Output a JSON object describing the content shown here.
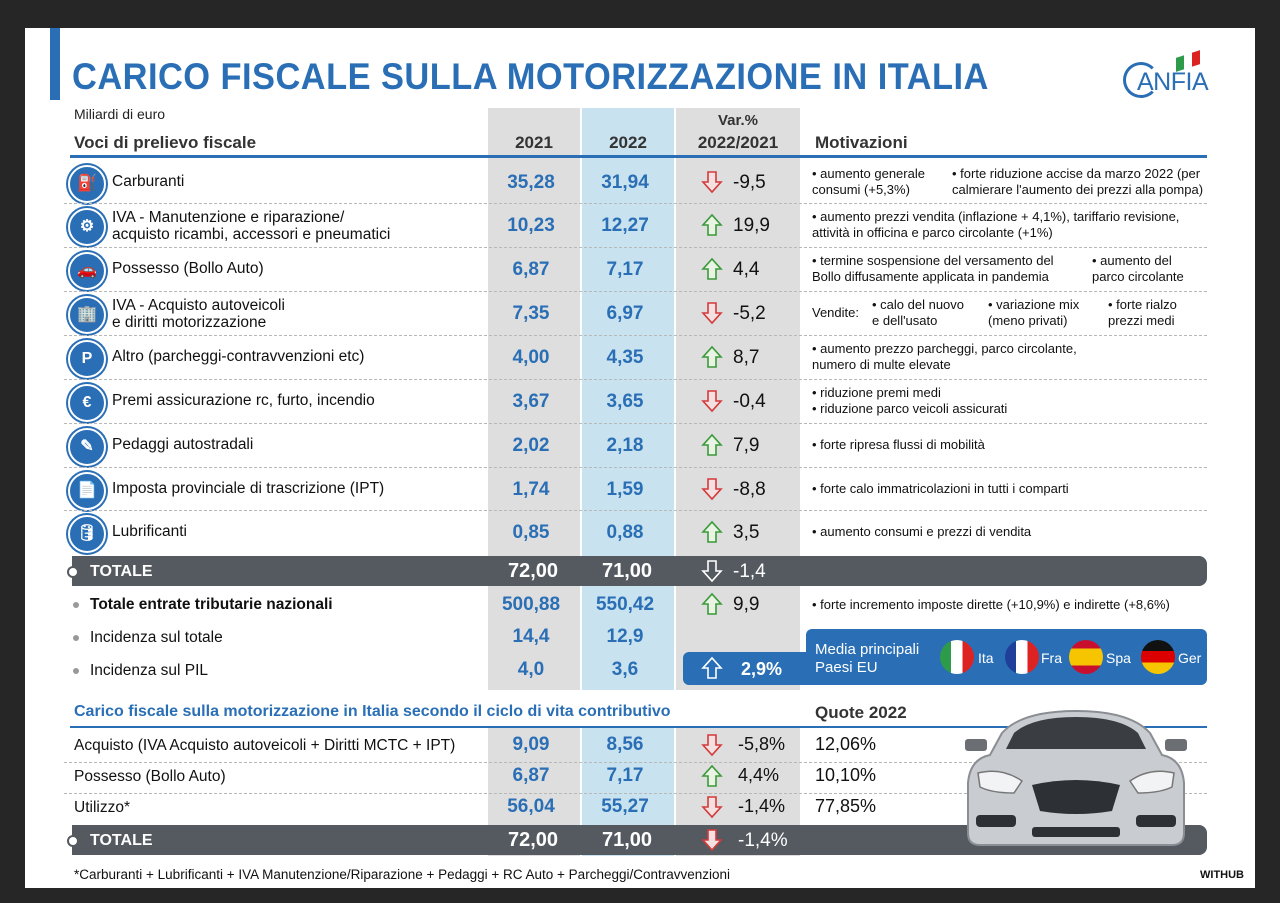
{
  "title": "CARICO FISCALE SULLA MOTORIZZAZIONE IN ITALIA",
  "logo": "ANFIA",
  "unit": "Miliardi di euro",
  "headers": {
    "voci": "Voci di prelievo fiscale",
    "y2021": "2021",
    "y2022": "2022",
    "var_top": "Var.%",
    "var_bottom": "2022/2021",
    "motivazioni": "Motivazioni"
  },
  "rows": [
    {
      "label1": "Carburanti",
      "label2": "",
      "v2021": "35,28",
      "v2022": "31,94",
      "dir": "down",
      "var": "-9,5",
      "mot": [
        [
          "• aumento generale",
          "consumi (+5,3%)"
        ],
        [
          "• forte riduzione accise da marzo 2022 (per",
          "calmierare l'aumento dei prezzi alla pompa)"
        ]
      ]
    },
    {
      "label1": "IVA - Manutenzione e riparazione/",
      "label2": "acquisto ricambi, accessori e pneumatici",
      "v2021": "10,23",
      "v2022": "12,27",
      "dir": "up",
      "var": "19,9",
      "mot": [
        [
          "• aumento prezzi vendita (inflazione + 4,1%), tariffario revisione,",
          "attività in officina e parco circolante (+1%)"
        ]
      ]
    },
    {
      "label1": "Possesso (Bollo Auto)",
      "label2": "",
      "v2021": "6,87",
      "v2022": "7,17",
      "dir": "up",
      "var": "4,4",
      "mot": [
        [
          "• termine sospensione del versamento del",
          "Bollo diffusamente applicata in pandemia"
        ],
        [
          "• aumento del",
          "parco circolante"
        ]
      ]
    },
    {
      "label1": "IVA - Acquisto autoveicoli",
      "label2": "e diritti motorizzazione",
      "v2021": "7,35",
      "v2022": "6,97",
      "dir": "down",
      "var": "-5,2",
      "mot": [
        [
          "Vendite:",
          ""
        ],
        [
          "• calo del nuovo",
          "e dell'usato"
        ],
        [
          "• variazione mix",
          "(meno privati)"
        ],
        [
          "• forte rialzo",
          "prezzi medi"
        ]
      ]
    },
    {
      "label1": "Altro (parcheggi-contravvenzioni etc)",
      "label2": "",
      "v2021": "4,00",
      "v2022": "4,35",
      "dir": "up",
      "var": "8,7",
      "mot": [
        [
          "• aumento prezzo parcheggi, parco circolante,",
          "numero di multe elevate"
        ]
      ]
    },
    {
      "label1": "Premi assicurazione rc, furto, incendio",
      "label2": "",
      "v2021": "3,67",
      "v2022": "3,65",
      "dir": "down",
      "var": "-0,4",
      "mot": [
        [
          "• riduzione premi medi",
          "• riduzione parco veicoli assicurati"
        ]
      ]
    },
    {
      "label1": "Pedaggi autostradali",
      "label2": "",
      "v2021": "2,02",
      "v2022": "2,18",
      "dir": "up",
      "var": "7,9",
      "mot": [
        [
          "• forte ripresa flussi di mobilità",
          ""
        ]
      ]
    },
    {
      "label1": "Imposta provinciale di trascrizione (IPT)",
      "label2": "",
      "v2021": "1,74",
      "v2022": "1,59",
      "dir": "down",
      "var": "-8,8",
      "mot": [
        [
          "• forte calo immatricolazioni in tutti i comparti",
          ""
        ]
      ]
    },
    {
      "label1": "Lubrificanti",
      "label2": "",
      "v2021": "0,85",
      "v2022": "0,88",
      "dir": "up",
      "var": "3,5",
      "mot": [
        [
          "• aumento consumi e prezzi di vendita",
          ""
        ]
      ]
    }
  ],
  "totale": {
    "label": "TOTALE",
    "v2021": "72,00",
    "v2022": "71,00",
    "var": "-1,4"
  },
  "nazionali": {
    "label": "Totale entrate tributarie nazionali",
    "v2021": "500,88",
    "v2022": "550,42",
    "var": "9,9",
    "mot": "• forte incremento imposte dirette (+10,9%) e indirette (+8,6%)"
  },
  "incidenza_totale": {
    "label": "Incidenza sul totale",
    "v2021": "14,4",
    "v2022": "12,9"
  },
  "incidenza_pil": {
    "label": "Incidenza sul PIL",
    "v2021": "4,0",
    "v2022": "3,6"
  },
  "eu": {
    "line1": "Media principali",
    "line2": "Paesi EU",
    "var": "2,9%",
    "countries": [
      "Ita",
      "Fra",
      "Spa",
      "Ger"
    ]
  },
  "ciclo": {
    "title": "Carico fiscale sulla motorizzazione in Italia secondo il ciclo di vita contributivo",
    "quote_header": "Quote 2022",
    "rows": [
      {
        "label": "Acquisto (IVA Acquisto autoveicoli + Diritti MCTC + IPT)",
        "v2021": "9,09",
        "v2022": "8,56",
        "dir": "down",
        "var": "-5,8%",
        "quota": "12,06%"
      },
      {
        "label": "Possesso (Bollo Auto)",
        "v2021": "6,87",
        "v2022": "7,17",
        "dir": "up",
        "var": "4,4%",
        "quota": "10,10%"
      },
      {
        "label": "Utilizzo*",
        "v2021": "56,04",
        "v2022": "55,27",
        "dir": "down",
        "var": "-1,4%",
        "quota": "77,85%"
      }
    ],
    "totale": {
      "label": "TOTALE",
      "v2021": "72,00",
      "v2022": "71,00",
      "var": "-1,4%"
    }
  },
  "footnote": "*Carburanti + Lubrificanti + IVA Manutenzione/Riparazione + Pedaggi + RC Auto + Parcheggi/Contravvenzioni",
  "credit": "WITHUB",
  "colors": {
    "blue": "#2a6fb5",
    "up": "#3a9a3a",
    "down": "#d33a3a",
    "dark": "#545a60"
  }
}
